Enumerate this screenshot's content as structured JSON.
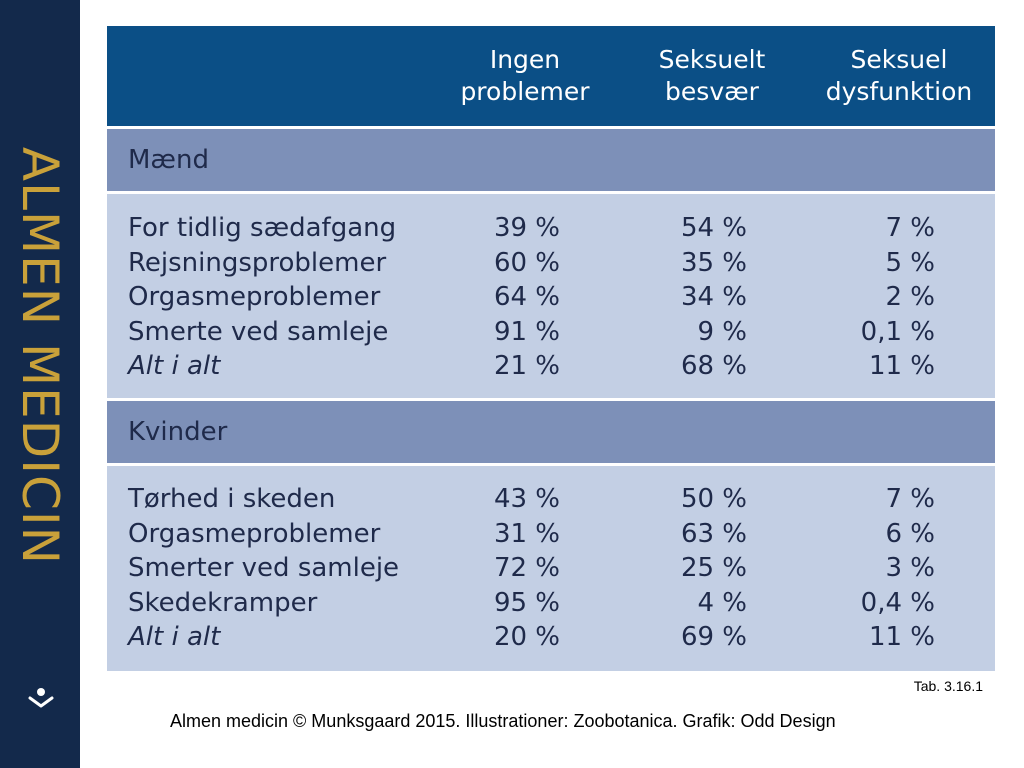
{
  "sidebar": {
    "brand_text": "ALMEN MEDICIN",
    "logo_icon": "almen-medicin-logo-icon"
  },
  "table": {
    "columns": [
      {
        "line1": "Ingen",
        "line2": "problemer"
      },
      {
        "line1": "Seksuelt",
        "line2": "besvær"
      },
      {
        "line1": "Seksuel",
        "line2": "dysfunktion"
      }
    ],
    "men": {
      "label": "Mænd",
      "rows": [
        {
          "label": "For tidlig sædafgang",
          "v1": "39 %",
          "v2": "54 %",
          "v3": "7 %"
        },
        {
          "label": "Rejsningsproblemer",
          "v1": "60 %",
          "v2": "35 %",
          "v3": "5 %"
        },
        {
          "label": "Orgasmeproblemer",
          "v1": "64 %",
          "v2": "34 %",
          "v3": "2 %"
        },
        {
          "label": "Smerte ved samleje",
          "v1": "91 %",
          "v2": "9 %",
          "v3": "0,1 %"
        },
        {
          "label": "Alt i alt",
          "v1": "21 %",
          "v2": "68 %",
          "v3": "11 %"
        }
      ]
    },
    "women": {
      "label": "Kvinder",
      "rows": [
        {
          "label": "Tørhed i skeden",
          "v1": "43 %",
          "v2": "50 %",
          "v3": "7 %"
        },
        {
          "label": "Orgasmeproblemer",
          "v1": "31 %",
          "v2": "63 %",
          "v3": "6 %"
        },
        {
          "label": "Smerter ved samleje",
          "v1": "72 %",
          "v2": "25 %",
          "v3": "3 %"
        },
        {
          "label": "Skedekramper",
          "v1": "95 %",
          "v2": "4 %",
          "v3": "0,4 %"
        },
        {
          "label": "Alt i alt",
          "v1": "20 %",
          "v2": "69 %",
          "v3": "11 %"
        }
      ]
    }
  },
  "caption": "Tab. 3.16.1",
  "credits": "Almen medicin © Munksgaard 2015. Illustrationer: Zoobotanica. Grafik: Odd Design",
  "colors": {
    "sidebar": "#13294b",
    "brand": "#c9a13a",
    "header": "#0b4f86",
    "section": "#7d90b8",
    "body": "#c3cfe4"
  }
}
